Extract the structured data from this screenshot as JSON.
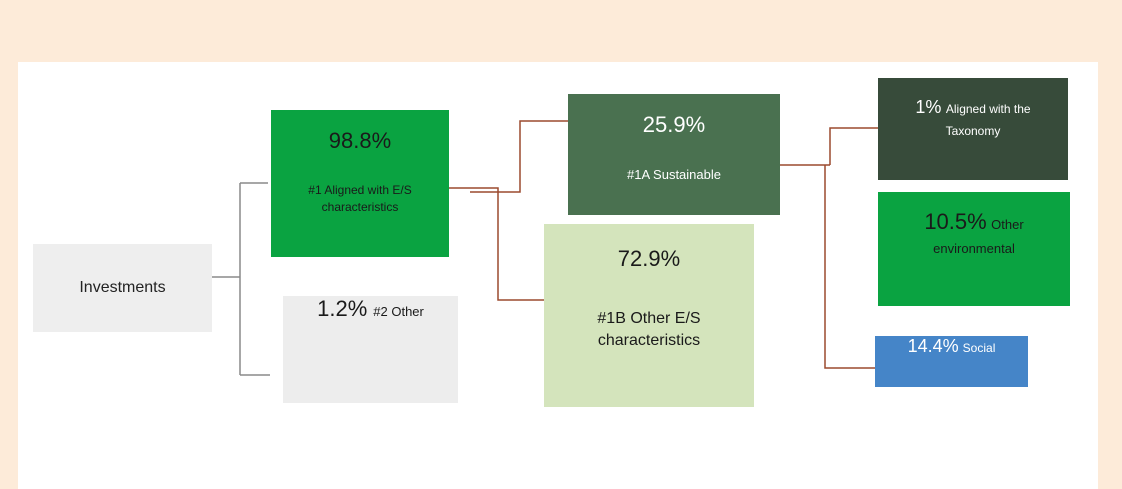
{
  "nodes": [
    {
      "label": "Investments"
    },
    {
      "value": "98.8%",
      "label": "#1 Aligned with E/S characteristics"
    },
    {
      "value": "1.2%",
      "label": "#2 Other"
    },
    {
      "value": "25.9%",
      "label": "#1A Sustainable"
    },
    {
      "value": "72.9%",
      "label": "#1B Other E/S characteristics"
    },
    {
      "value": "1%",
      "label": "Aligned with the Taxonomy"
    },
    {
      "value": "10.5%",
      "label": "Other environmental"
    },
    {
      "value": "14.4%",
      "label": "Social"
    }
  ]
}
